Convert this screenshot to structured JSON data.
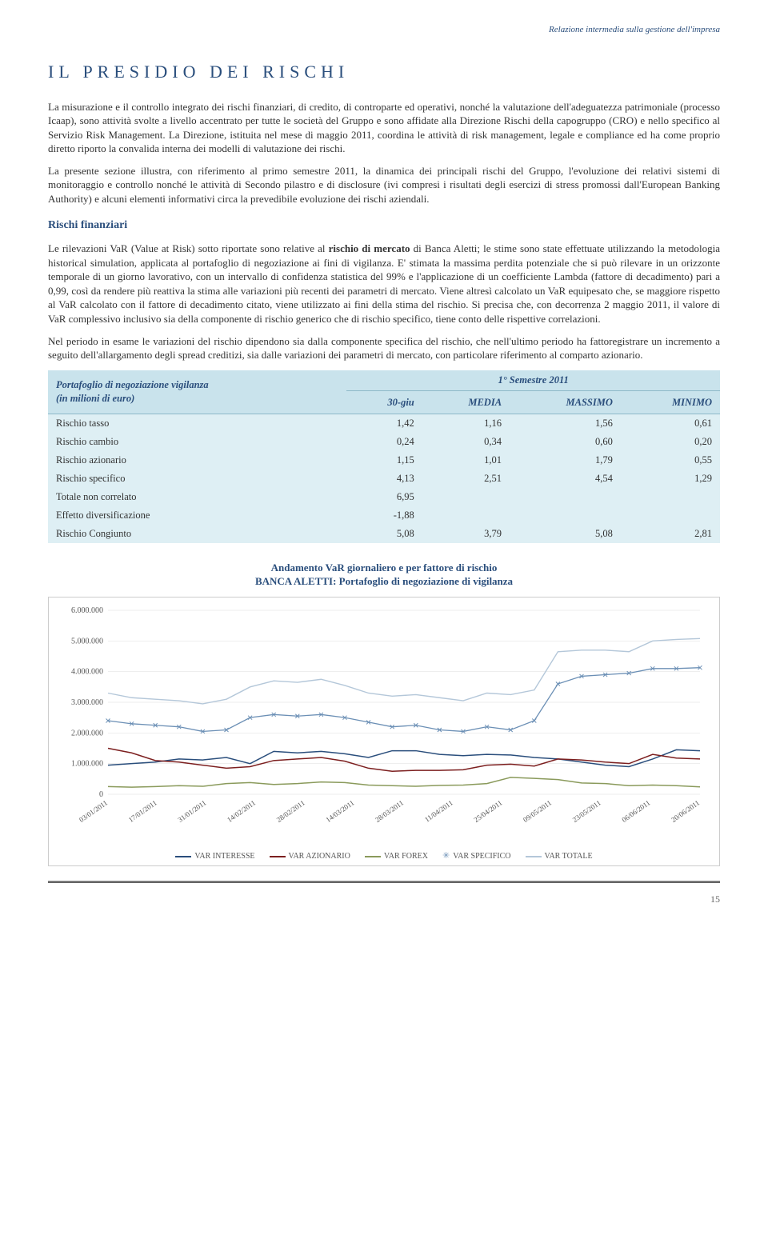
{
  "header_note": "Relazione intermedia sulla gestione dell'impresa",
  "title": "IL PRESIDIO DEI RISCHI",
  "para1": "La misurazione e il controllo integrato dei rischi finanziari, di credito, di controparte ed operativi, nonché la valutazione dell'adeguatezza patrimoniale (processo Icaap), sono attività svolte a livello accentrato per tutte le società del Gruppo e sono affidate alla Direzione Rischi della capogruppo (CRO) e nello specifico al Servizio Risk Management. La Direzione, istituita nel mese di maggio 2011, coordina le attività di risk management, legale e compliance ed ha come proprio diretto riporto la convalida interna dei modelli di valutazione dei rischi.",
  "para2": "La presente sezione illustra, con riferimento al primo semestre 2011, la dinamica dei principali rischi del Gruppo, l'evoluzione dei relativi sistemi di monitoraggio e controllo nonché le attività di Secondo pilastro e di disclosure (ivi compresi i risultati degli esercizi di stress promossi dall'European Banking Authority) e alcuni elementi informativi circa la prevedibile evoluzione dei rischi aziendali.",
  "section_heading": "Rischi finanziari",
  "para3_a": "Le rilevazioni VaR (Value at Risk) sotto riportate sono relative al ",
  "para3_bold": "rischio di mercato",
  "para3_b": " di Banca Aletti; le stime sono state effettuate utilizzando la metodologia historical simulation, applicata al portafoglio di negoziazione ai fini di vigilanza. E' stimata la massima perdita potenziale che si può rilevare in un orizzonte temporale di un giorno lavorativo, con un intervallo di confidenza statistica del 99% e l'applicazione di un coefficiente Lambda (fattore di decadimento) pari a 0,99, così da rendere più reattiva la stima alle variazioni più recenti dei parametri di mercato. Viene altresì calcolato un VaR equipesato che, se maggiore rispetto al VaR calcolato con il fattore di decadimento citato, viene utilizzato ai fini della stima del rischio. Si precisa che, con decorrenza 2 maggio 2011, il valore di VaR complessivo inclusivo sia della componente di rischio generico che di rischio specifico, tiene conto delle rispettive correlazioni.",
  "para4": "Nel periodo in esame le variazioni del rischio dipendono sia dalla componente specifica del rischio, che nell'ultimo periodo ha fattoregistrare un incremento a seguito dell'allargamento degli spread creditizi, sia dalle variazioni dei parametri di mercato, con particolare riferimento al comparto azionario.",
  "table": {
    "header_left_1": "Portafoglio di negoziazione vigilanza",
    "header_left_2": "(in milioni di euro)",
    "period": "1° Semestre 2011",
    "cols": [
      "30-giu",
      "MEDIA",
      "MASSIMO",
      "MINIMO"
    ],
    "rows": [
      {
        "label": "Rischio tasso",
        "v": [
          "1,42",
          "1,16",
          "1,56",
          "0,61"
        ]
      },
      {
        "label": "Rischio cambio",
        "v": [
          "0,24",
          "0,34",
          "0,60",
          "0,20"
        ]
      },
      {
        "label": "Rischio azionario",
        "v": [
          "1,15",
          "1,01",
          "1,79",
          "0,55"
        ]
      },
      {
        "label": "Rischio specifico",
        "v": [
          "4,13",
          "2,51",
          "4,54",
          "1,29"
        ]
      },
      {
        "label": "Totale non correlato",
        "v": [
          "6,95",
          "",
          "",
          ""
        ]
      },
      {
        "label": "Effetto diversificazione",
        "v": [
          "-1,88",
          "",
          "",
          ""
        ]
      },
      {
        "label": "Rischio Congiunto",
        "v": [
          "5,08",
          "3,79",
          "5,08",
          "2,81"
        ]
      }
    ]
  },
  "chart": {
    "title": "Andamento VaR giornaliero e per fattore di rischio",
    "subtitle": "BANCA ALETTI: Portafoglio di negoziazione di vigilanza",
    "type": "line",
    "ylim": [
      0,
      6000000
    ],
    "ytick_step": 1000000,
    "yticks": [
      "0",
      "1.000.000",
      "2.000.000",
      "3.000.000",
      "4.000.000",
      "5.000.000",
      "6.000.000"
    ],
    "xlabels": [
      "03/01/2011",
      "17/01/2011",
      "31/01/2011",
      "14/02/2011",
      "28/02/2011",
      "14/03/2011",
      "28/03/2011",
      "11/04/2011",
      "25/04/2011",
      "09/05/2011",
      "23/05/2011",
      "06/06/2011",
      "20/06/2011"
    ],
    "background_color": "#ffffff",
    "grid_color": "#dddddd",
    "series": [
      {
        "name": "VAR INTERESSE",
        "color": "#2a4e7c",
        "marker": "none",
        "width": 1.5,
        "data": [
          950000,
          1000000,
          1050000,
          1150000,
          1120000,
          1200000,
          1000000,
          1400000,
          1350000,
          1400000,
          1320000,
          1200000,
          1420000,
          1420000,
          1300000,
          1260000,
          1300000,
          1280000,
          1200000,
          1150000,
          1050000,
          950000,
          900000,
          1150000,
          1450000,
          1420000
        ]
      },
      {
        "name": "VAR AZIONARIO",
        "color": "#7c1f1f",
        "marker": "none",
        "width": 1.5,
        "data": [
          1500000,
          1350000,
          1100000,
          1050000,
          950000,
          850000,
          900000,
          1100000,
          1150000,
          1200000,
          1080000,
          850000,
          750000,
          780000,
          780000,
          800000,
          950000,
          980000,
          920000,
          1150000,
          1120000,
          1050000,
          1000000,
          1300000,
          1180000,
          1150000
        ]
      },
      {
        "name": "VAR FOREX",
        "color": "#8a9a5b",
        "marker": "none",
        "width": 1.5,
        "data": [
          250000,
          230000,
          250000,
          280000,
          260000,
          350000,
          380000,
          320000,
          350000,
          400000,
          380000,
          300000,
          280000,
          260000,
          290000,
          300000,
          350000,
          550000,
          520000,
          480000,
          370000,
          350000,
          280000,
          300000,
          280000,
          240000
        ]
      },
      {
        "name": "VAR SPECIFICO",
        "color": "#6b8fb5",
        "marker": "x",
        "width": 1.3,
        "data": [
          2400000,
          2300000,
          2250000,
          2200000,
          2050000,
          2100000,
          2500000,
          2600000,
          2550000,
          2600000,
          2500000,
          2350000,
          2200000,
          2250000,
          2100000,
          2050000,
          2200000,
          2100000,
          2400000,
          3600000,
          3850000,
          3900000,
          3950000,
          4100000,
          4100000,
          4130000
        ]
      },
      {
        "name": "VAR TOTALE",
        "color": "#b4c7d9",
        "marker": "none",
        "width": 1.4,
        "data": [
          3300000,
          3150000,
          3100000,
          3050000,
          2950000,
          3100000,
          3500000,
          3700000,
          3650000,
          3750000,
          3550000,
          3300000,
          3200000,
          3250000,
          3150000,
          3050000,
          3300000,
          3250000,
          3400000,
          4650000,
          4700000,
          4700000,
          4650000,
          5000000,
          5050000,
          5080000
        ]
      }
    ]
  },
  "legend": [
    "VAR INTERESSE",
    "VAR AZIONARIO",
    "VAR FOREX",
    "VAR SPECIFICO",
    "VAR TOTALE"
  ],
  "legend_colors": [
    "#2a4e7c",
    "#7c1f1f",
    "#8a9a5b",
    "#6b8fb5",
    "#b4c7d9"
  ],
  "page_number": "15"
}
